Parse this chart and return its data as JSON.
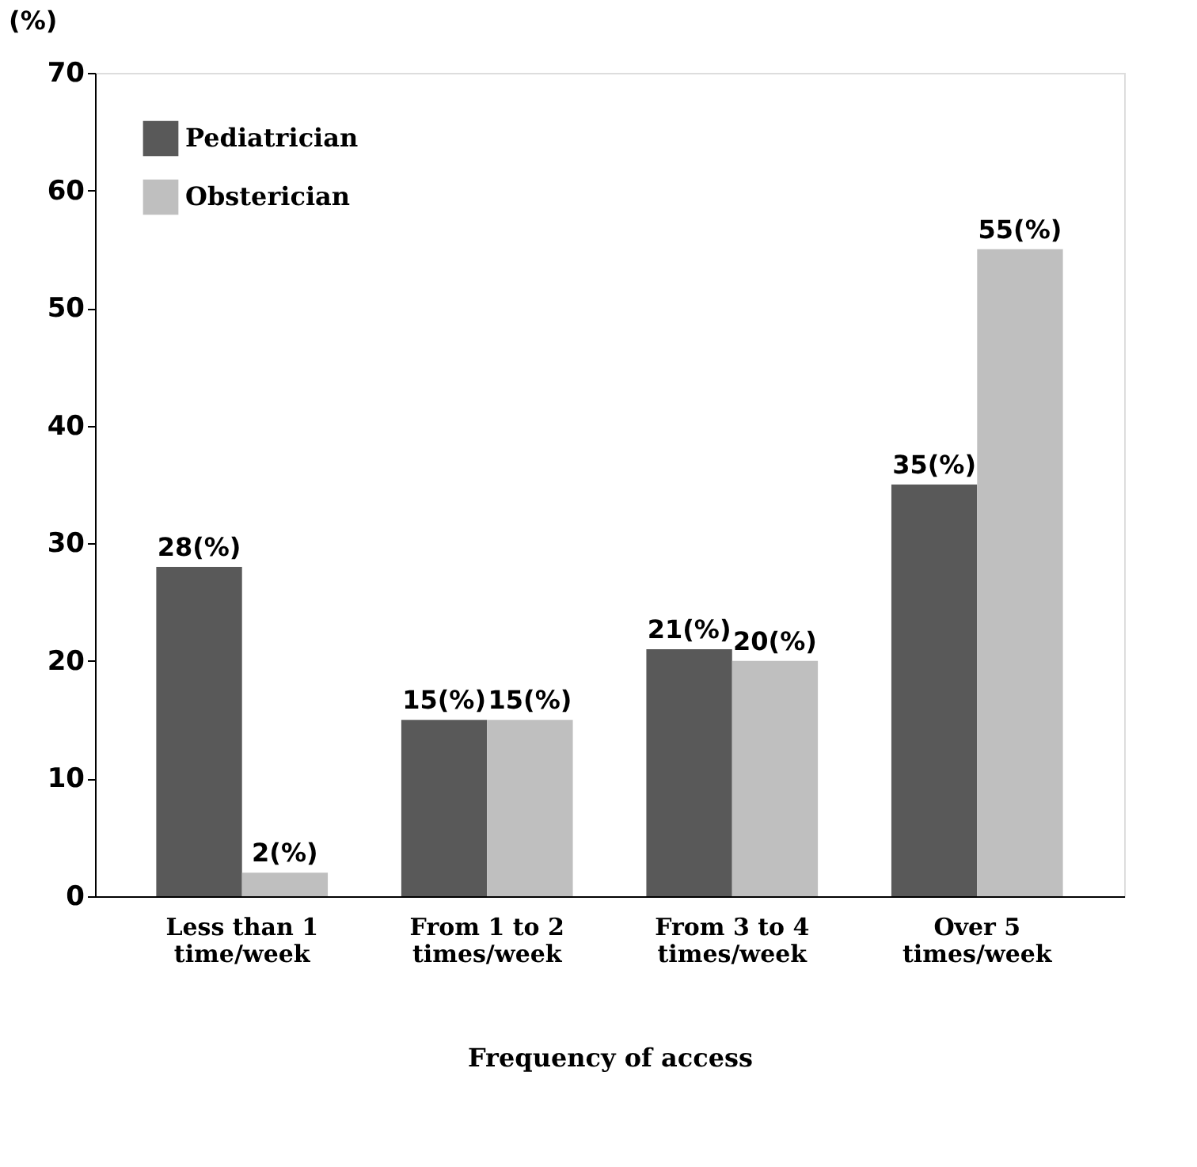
{
  "chart_data": {
    "type": "bar",
    "xlabel": "Frequency of access",
    "ylabel": "(%)",
    "categories": [
      "Less than 1\ntime/week",
      "From 1 to 2\ntimes/week",
      "From 3 to 4\ntimes/week",
      "Over 5\ntimes/week"
    ],
    "series": [
      {
        "name": "Pediatrician",
        "color": "#595959",
        "values": [
          28,
          15,
          21,
          35
        ],
        "value_labels": [
          "28(%)",
          "15(%)",
          "21(%)",
          "35(%)"
        ]
      },
      {
        "name": "Obsterician",
        "color": "#bfbfbf",
        "values": [
          2,
          15,
          20,
          55
        ],
        "value_labels": [
          "2(%)",
          "15(%)",
          "20(%)",
          "55(%)"
        ]
      }
    ],
    "ylim": [
      0,
      70
    ],
    "yticks": [
      0,
      10,
      20,
      30,
      40,
      50,
      60,
      70
    ],
    "grid": false,
    "legend": "top left"
  }
}
